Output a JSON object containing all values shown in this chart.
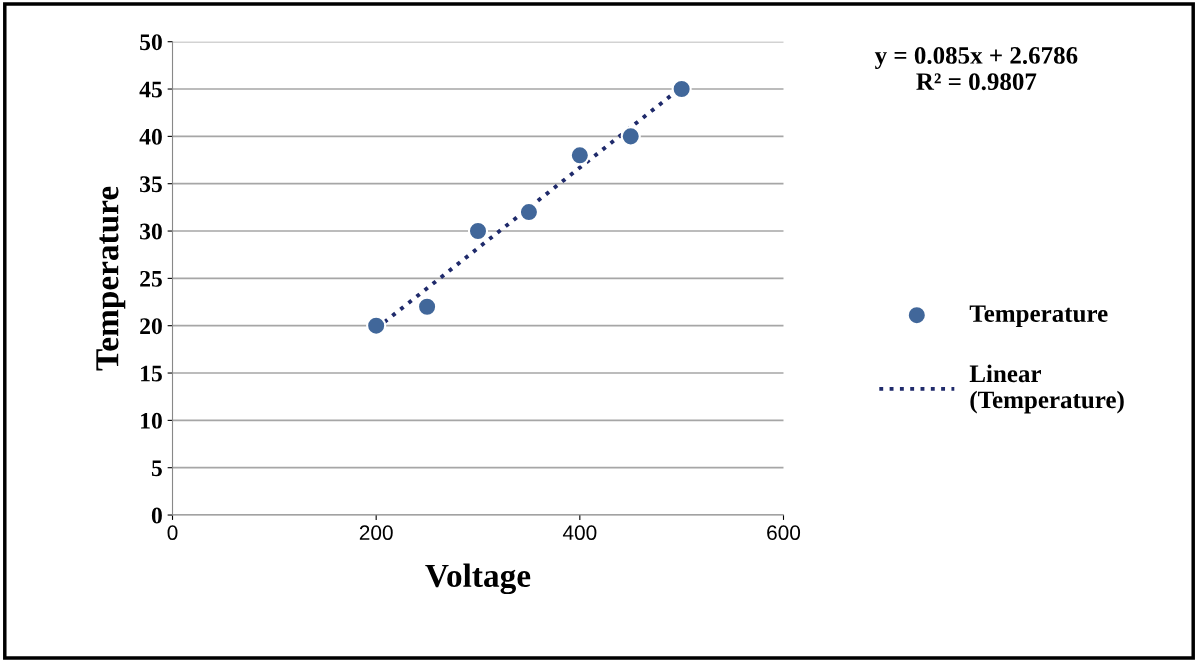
{
  "chart_data": {
    "type": "scatter",
    "xlabel": "Voltage",
    "ylabel": "Temperature",
    "x": [
      200,
      250,
      300,
      350,
      400,
      450,
      500
    ],
    "series": [
      {
        "name": "Temperature",
        "color": "#41679a",
        "marker": "circle",
        "values": [
          20,
          22,
          30,
          32,
          38,
          40,
          45
        ]
      },
      {
        "name": "Linear (Temperature)",
        "type": "line",
        "color": "#1f2a6b",
        "line_style": "dotted",
        "marker": "none",
        "x": [
          200,
          500
        ],
        "values": [
          19.7,
          45.2
        ]
      }
    ],
    "xlim": [
      0,
      600
    ],
    "xticks": [
      0,
      200,
      400,
      600
    ],
    "ylim": [
      0,
      50
    ],
    "yticks": [
      0,
      5,
      10,
      15,
      20,
      25,
      30,
      35,
      40,
      45,
      50
    ],
    "grid": "y",
    "legend": "right",
    "annotations": [
      "y = 0.085x + 2.6786\nR² = 0.9807"
    ]
  }
}
